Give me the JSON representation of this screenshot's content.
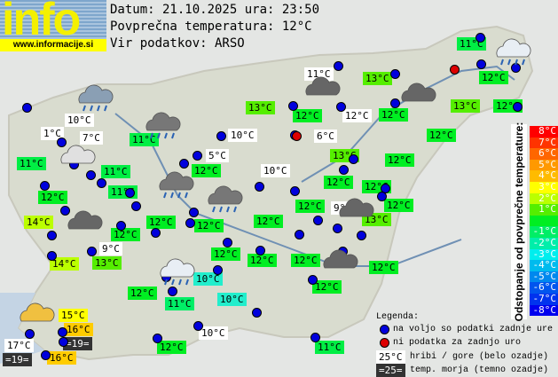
{
  "logo": {
    "text": "info",
    "url": "www.informacije.si"
  },
  "header": {
    "date_line": "Datum: 21.10.2025 ura: 23:50",
    "avg_line": "Povprečna temperatura: 12°C",
    "source_line": "Vir podatkov: ARSO"
  },
  "colors": {
    "station": "#0000dd",
    "no_data": "#dd0000",
    "hill_bg": "#ffffff",
    "sea_bg": "#333333"
  },
  "labels": [
    {
      "t": "11°C",
      "c": "#00ee44"
    },
    {
      "t": "11°C",
      "c": "w"
    },
    {
      "t": "13°C",
      "c": "#55ee00"
    },
    {
      "t": "12°C",
      "c": "#00ee22"
    },
    {
      "t": "13°C",
      "c": "#55ee00"
    },
    {
      "t": "12°C",
      "c": "#00ee22"
    },
    {
      "t": "12°C",
      "c": "w"
    },
    {
      "t": "12°C",
      "c": "#00ee22"
    },
    {
      "t": "13°C",
      "c": "#55ee00"
    },
    {
      "t": "12°C",
      "c": "#00ee22"
    },
    {
      "t": "10°C",
      "c": "w"
    },
    {
      "t": "1°C",
      "c": "w"
    },
    {
      "t": "7°C",
      "c": "w"
    },
    {
      "t": "11°C",
      "c": "#00ee44"
    },
    {
      "t": "10°C",
      "c": "w"
    },
    {
      "t": "6°C",
      "c": "w"
    },
    {
      "t": "12°C",
      "c": "#00ee22"
    },
    {
      "t": "11°C",
      "c": "#00ee44"
    },
    {
      "t": "5°C",
      "c": "w"
    },
    {
      "t": "13°C",
      "c": "#55ee00"
    },
    {
      "t": "12°C",
      "c": "#00ee22"
    },
    {
      "t": "11°C",
      "c": "#00ee44"
    },
    {
      "t": "12°C",
      "c": "#00ee22"
    },
    {
      "t": "10°C",
      "c": "w"
    },
    {
      "t": "12°C",
      "c": "#00ee22"
    },
    {
      "t": "12°C",
      "c": "#00ee22"
    },
    {
      "t": "11°C",
      "c": "#00ee44"
    },
    {
      "t": "12°C",
      "c": "#00ee22"
    },
    {
      "t": "12°C",
      "c": "#00ee22"
    },
    {
      "t": "9°C",
      "c": "w"
    },
    {
      "t": "12°C",
      "c": "#00ee22"
    },
    {
      "t": "14°C",
      "c": "#bbff00"
    },
    {
      "t": "12°C",
      "c": "#00ee22"
    },
    {
      "t": "12°C",
      "c": "#00ee22"
    },
    {
      "t": "12°C",
      "c": "#00ee22"
    },
    {
      "t": "13°C",
      "c": "#55ee00"
    },
    {
      "t": "12°C",
      "c": "#00ee22"
    },
    {
      "t": "9°C",
      "c": "w"
    },
    {
      "t": "14°C",
      "c": "#bbff00"
    },
    {
      "t": "13°C",
      "c": "#55ee00"
    },
    {
      "t": "12°C",
      "c": "#00ee22"
    },
    {
      "t": "12°C",
      "c": "#00ee22"
    },
    {
      "t": "12°C",
      "c": "#00ee22"
    },
    {
      "t": "12°C",
      "c": "#00ee22"
    },
    {
      "t": "10°C",
      "c": "#22eecc"
    },
    {
      "t": "12°C",
      "c": "#00ee22"
    },
    {
      "t": "12°C",
      "c": "#00ee22"
    },
    {
      "t": "11°C",
      "c": "#00ee66"
    },
    {
      "t": "10°C",
      "c": "#22eecc"
    },
    {
      "t": "15°C",
      "c": "#ffff00"
    },
    {
      "t": "16°C",
      "c": "#ffcc00"
    },
    {
      "t": "=19=",
      "c": "d"
    },
    {
      "t": "17°C",
      "c": "w"
    },
    {
      "t": "=19=",
      "c": "d"
    },
    {
      "t": "16°C",
      "c": "#ffcc00"
    },
    {
      "t": "10°C",
      "c": "w"
    },
    {
      "t": "12°C",
      "c": "#00ee22"
    },
    {
      "t": "11°C",
      "c": "#00ee44"
    }
  ],
  "scale": {
    "title": "Odstopanje od povprečne temperature:",
    "rows": [
      {
        "t": "8°C",
        "c": "#ff0000"
      },
      {
        "t": "7°C",
        "c": "#ff3300"
      },
      {
        "t": "6°C",
        "c": "#ff6600"
      },
      {
        "t": "5°C",
        "c": "#ff9900"
      },
      {
        "t": "4°C",
        "c": "#ffbb00"
      },
      {
        "t": "3°C",
        "c": "#ffff00"
      },
      {
        "t": "2°C",
        "c": "#bbff00"
      },
      {
        "t": "1°C",
        "c": "#55ee00"
      },
      {
        "t": "",
        "c": "#00ee22"
      },
      {
        "t": "-1°C",
        "c": "#00ee66"
      },
      {
        "t": "-2°C",
        "c": "#00eeaa"
      },
      {
        "t": "-3°C",
        "c": "#00eeee"
      },
      {
        "t": "-4°C",
        "c": "#00bbee"
      },
      {
        "t": "-5°C",
        "c": "#0088ee"
      },
      {
        "t": "-6°C",
        "c": "#0055ee"
      },
      {
        "t": "-7°C",
        "c": "#0033ee"
      },
      {
        "t": "-8°C",
        "c": "#0000ee"
      }
    ]
  },
  "legend": {
    "title": "Legenda:",
    "available": "na voljo so podatki zadnje ure",
    "no_data": "ni podatka za zadnjo uro",
    "hill_sample": "25°C",
    "hill_text": "hribi / gore (belo ozadje)",
    "sea_sample": "=25=",
    "sea_text": "temp. morja (temno ozadje)"
  }
}
